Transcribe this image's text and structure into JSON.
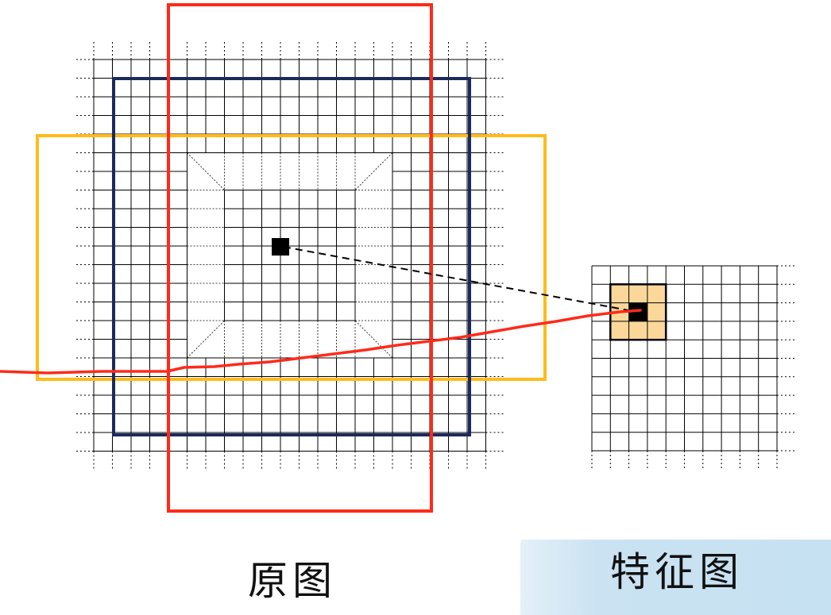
{
  "labels": {
    "original_image": "原图",
    "feature_map": "特征图"
  },
  "colors": {
    "grid_line": "#000000",
    "red_window": "#ff2a1a",
    "blue_window": "#1b2a5c",
    "orange_window": "#ffbb1c",
    "receptive_patch": "#fbd89a",
    "center_cell": "#000000",
    "caption_band": "#c6e1f2"
  }
}
